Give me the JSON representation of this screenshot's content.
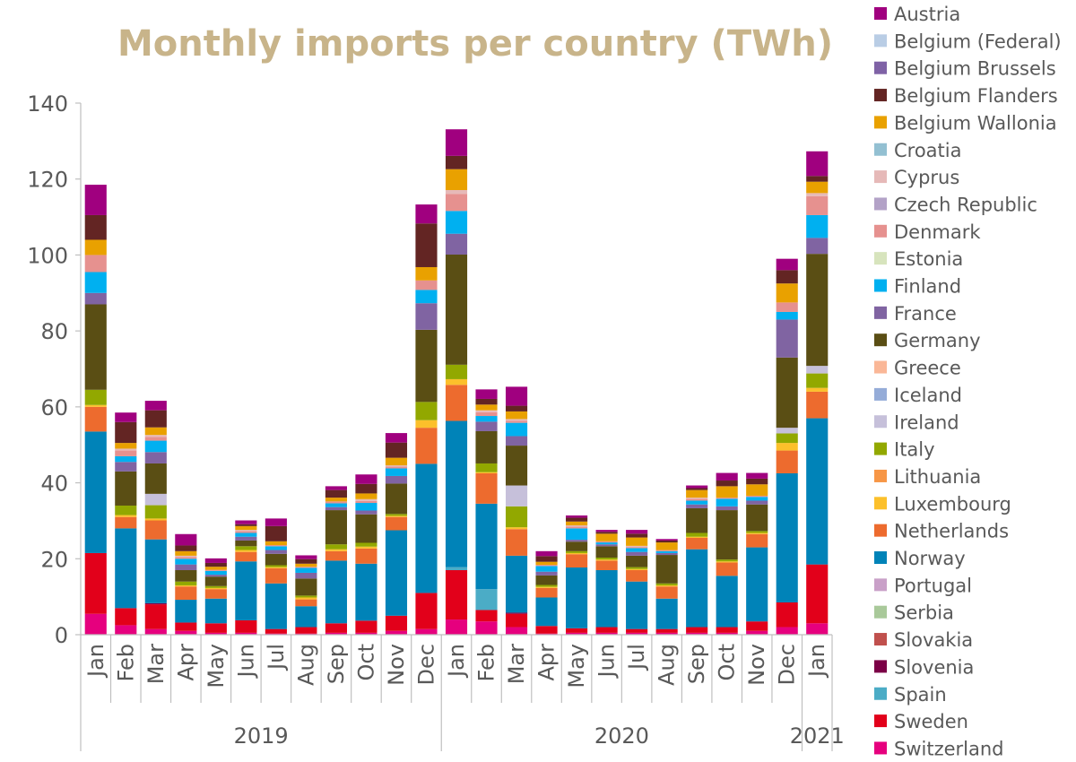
{
  "chart_data": {
    "type": "bar",
    "stacked": true,
    "title": "Monthly imports per country (TWh)",
    "xlabel": "",
    "ylabel": "",
    "ylim": [
      0,
      140
    ],
    "yticks": [
      0,
      20,
      40,
      60,
      80,
      100,
      120,
      140
    ],
    "grid": false,
    "legend_position": "right",
    "categories": [
      "Jan",
      "Feb",
      "Mar",
      "Apr",
      "May",
      "Jun",
      "Jul",
      "Aug",
      "Sep",
      "Oct",
      "Nov",
      "Dec",
      "Jan",
      "Feb",
      "Mar",
      "Apr",
      "May",
      "Jun",
      "Jul",
      "Aug",
      "Sep",
      "Oct",
      "Nov",
      "Dec",
      "Jan"
    ],
    "groups": [
      {
        "label": "2019",
        "start": 0,
        "end": 11
      },
      {
        "label": "2020",
        "start": 12,
        "end": 23
      },
      {
        "label": "2021",
        "start": 24,
        "end": 24
      }
    ],
    "series": [
      {
        "name": "Switzerland",
        "color": "#e6007e",
        "values": [
          5.5,
          2.5,
          1.5,
          1,
          0.5,
          0.5,
          0.3,
          0.3,
          0.5,
          0.5,
          1,
          1.5,
          4,
          3.5,
          2,
          0.3,
          0.5,
          0.5,
          0.5,
          0.5,
          0.5,
          0.5,
          1,
          2,
          3
        ]
      },
      {
        "name": "Sweden",
        "color": "#e2001a",
        "values": [
          16,
          4.5,
          6.5,
          2.2,
          2.5,
          3.3,
          1.2,
          1.7,
          2.5,
          3.2,
          4,
          9.5,
          13,
          3,
          3.5,
          2,
          1.2,
          1.5,
          1,
          1,
          1.5,
          1.5,
          2.5,
          6.5,
          15.5
        ]
      },
      {
        "name": "Spain",
        "color": "#4bacc6",
        "values": [
          0,
          0,
          0,
          0,
          0,
          0,
          0,
          0,
          0,
          0,
          0,
          0,
          0.8,
          5.5,
          0,
          0,
          0,
          0,
          0,
          0,
          0,
          0,
          0,
          0,
          0
        ]
      },
      {
        "name": "Slovenia",
        "color": "#7b0046",
        "values": [
          0,
          0,
          0.3,
          0,
          0,
          0,
          0,
          0,
          0,
          0,
          0,
          0,
          0,
          0,
          0.3,
          0,
          0,
          0,
          0,
          0,
          0,
          0,
          0,
          0,
          0
        ]
      },
      {
        "name": "Slovakia",
        "color": "#c0504d",
        "values": [
          0,
          0,
          0,
          0,
          0,
          0,
          0,
          0,
          0,
          0,
          0,
          0,
          0,
          0,
          0,
          0,
          0,
          0,
          0,
          0,
          0,
          0,
          0,
          0,
          0
        ]
      },
      {
        "name": "Serbia",
        "color": "#a9c99a",
        "values": [
          0,
          0,
          0,
          0,
          0,
          0,
          0,
          0,
          0,
          0,
          0,
          0,
          0,
          0,
          0,
          0,
          0,
          0,
          0,
          0,
          0,
          0,
          0,
          0,
          0
        ]
      },
      {
        "name": "Portugal",
        "color": "#c9a0c8",
        "values": [
          0,
          0,
          0,
          0,
          0,
          0,
          0,
          0,
          0,
          0,
          0,
          0,
          0,
          0,
          0,
          0,
          0,
          0,
          0,
          0,
          0,
          0,
          0,
          0,
          0
        ]
      },
      {
        "name": "Norway",
        "color": "#0083b8",
        "values": [
          32,
          21,
          16.8,
          6,
          6.5,
          15.5,
          12,
          5.5,
          16.5,
          15,
          22.5,
          34,
          38.5,
          22.5,
          15,
          7.5,
          16,
          15,
          12.5,
          8,
          20.5,
          13.5,
          19.5,
          34,
          38.5
        ]
      },
      {
        "name": "Netherlands",
        "color": "#ed6b2e",
        "values": [
          6.5,
          3,
          5,
          3.5,
          2.5,
          2.5,
          4,
          1.8,
          2.5,
          4,
          3.5,
          9.5,
          9.5,
          8,
          7,
          2.5,
          3.5,
          2.5,
          3,
          3.2,
          3,
          3.5,
          3.5,
          6,
          7
        ]
      },
      {
        "name": "Luxembourg",
        "color": "#fcc02b",
        "values": [
          0.5,
          0.5,
          0.5,
          0.3,
          0.3,
          0.5,
          0.3,
          0.5,
          0.5,
          0.5,
          0.3,
          2,
          1.5,
          0.3,
          0.5,
          0.3,
          0.3,
          0.3,
          0.3,
          0.3,
          0.3,
          0.3,
          0.3,
          2,
          1
        ]
      },
      {
        "name": "Lithuania",
        "color": "#f79646",
        "values": [
          0,
          0,
          0,
          0,
          0,
          0,
          0,
          0,
          0,
          0,
          0,
          0,
          0,
          0,
          0,
          0,
          0,
          0,
          0,
          0,
          0,
          0,
          0,
          0,
          0
        ]
      },
      {
        "name": "Italy",
        "color": "#92a800",
        "values": [
          4,
          2.5,
          3.5,
          1,
          0.5,
          1,
          0.5,
          0.5,
          1.3,
          1,
          0.5,
          4.8,
          3.8,
          2.3,
          5.5,
          0.5,
          0.5,
          0.5,
          0.5,
          0.5,
          1,
          0.5,
          0.5,
          2.5,
          3.8
        ]
      },
      {
        "name": "Ireland",
        "color": "#c6c0da",
        "values": [
          0,
          0,
          3,
          0,
          0,
          0,
          0,
          0,
          0,
          0,
          0,
          0,
          0,
          0,
          5.5,
          0,
          0,
          0,
          0,
          0,
          0,
          0,
          0,
          1.5,
          2
        ]
      },
      {
        "name": "Iceland",
        "color": "#95acd8",
        "values": [
          0,
          0,
          0,
          0,
          0,
          0,
          0,
          0,
          0,
          0,
          0,
          0,
          0,
          0,
          0,
          0,
          0,
          0,
          0,
          0,
          0,
          0,
          0,
          0,
          0
        ]
      },
      {
        "name": "Greece",
        "color": "#fab797",
        "values": [
          0,
          0,
          0,
          0,
          0,
          0,
          0,
          0,
          0,
          0,
          0,
          0,
          0,
          0,
          0,
          0,
          0,
          0,
          0,
          0,
          0,
          0,
          0,
          0,
          0
        ]
      },
      {
        "name": "Germany",
        "color": "#5a4e14",
        "values": [
          22.5,
          9,
          8,
          3,
          2.5,
          1.5,
          3,
          4.5,
          9,
          7.5,
          8,
          19,
          29,
          8.5,
          10.5,
          2.5,
          2.5,
          3,
          3,
          7.5,
          6.5,
          13,
          7,
          18.5,
          29.5
        ]
      },
      {
        "name": "France",
        "color": "#8064a2",
        "values": [
          3,
          2.5,
          3,
          1.5,
          0.5,
          1,
          1,
          1.5,
          0.8,
          1,
          2,
          7,
          5.5,
          2.5,
          2.5,
          1,
          0.5,
          0.5,
          1,
          0.5,
          1,
          1,
          1,
          10,
          4.2
        ]
      },
      {
        "name": "Finland",
        "color": "#00b0f0",
        "values": [
          5.5,
          1.5,
          3,
          1.5,
          1,
          1,
          1,
          1.3,
          1,
          2,
          2,
          3.5,
          6,
          1.5,
          3.5,
          1.5,
          3,
          0.5,
          1,
          0.5,
          1,
          2,
          1,
          2,
          6
        ]
      },
      {
        "name": "Estonia",
        "color": "#d7e4bd",
        "values": [
          0,
          0,
          0,
          0,
          0,
          0,
          0,
          0,
          0,
          0,
          0,
          0,
          0,
          0,
          0,
          0,
          0,
          0,
          0,
          0,
          0,
          0,
          0,
          0,
          0
        ]
      },
      {
        "name": "Denmark",
        "color": "#e6918f",
        "values": [
          4.5,
          1.5,
          1,
          0.5,
          0.3,
          0.5,
          0.3,
          0.3,
          0.5,
          0.5,
          0.5,
          2.5,
          4.5,
          1,
          0.5,
          0.3,
          0.5,
          0.3,
          0.3,
          0.3,
          0.5,
          0.3,
          0.3,
          2.5,
          5
        ]
      },
      {
        "name": "Czech Republic",
        "color": "#b3a2c7",
        "values": [
          0,
          0,
          0,
          0,
          0,
          0,
          0,
          0,
          0,
          0,
          0,
          0,
          0,
          0,
          0,
          0,
          0,
          0,
          0,
          0,
          0,
          0,
          0,
          0,
          0
        ]
      },
      {
        "name": "Cyprus",
        "color": "#e6b9b8",
        "values": [
          0,
          0.5,
          0.5,
          0.3,
          0,
          0.3,
          0,
          0,
          0,
          0.5,
          0.3,
          0,
          1,
          0.5,
          0.5,
          0,
          0.3,
          0,
          0.3,
          0,
          0.3,
          0,
          0,
          0,
          0.8
        ]
      },
      {
        "name": "Croatia",
        "color": "#93c0d2",
        "values": [
          0,
          0,
          0,
          0,
          0,
          0,
          0,
          0,
          0,
          0,
          0,
          0,
          0,
          0,
          0,
          0,
          0,
          0,
          0,
          0,
          0,
          0,
          0,
          0,
          0
        ]
      },
      {
        "name": "Belgium Wallonia",
        "color": "#e9a100",
        "values": [
          4,
          1.5,
          2,
          1.2,
          0.8,
          1,
          1,
          0.8,
          1,
          1.5,
          2,
          3.5,
          5.5,
          1.5,
          2,
          0.8,
          1,
          2,
          2.2,
          2,
          2,
          3,
          3,
          5,
          3
        ]
      },
      {
        "name": "Belgium Flanders",
        "color": "#632523",
        "values": [
          6.5,
          5.5,
          4.5,
          1.5,
          1,
          0.5,
          4,
          1.2,
          2,
          2.5,
          4,
          11.5,
          3.5,
          1.5,
          1.5,
          1.5,
          1,
          0.5,
          1,
          0.5,
          0.5,
          1.5,
          1.5,
          3.5,
          1.5
        ]
      },
      {
        "name": "Belgium Brussels",
        "color": "#7f62a6",
        "values": [
          0,
          0,
          0,
          0,
          0,
          0,
          0,
          0,
          0,
          0,
          0,
          0,
          0,
          0,
          0,
          0,
          0,
          0,
          0,
          0,
          0,
          0,
          0,
          0,
          0
        ]
      },
      {
        "name": "Belgium (Federal)",
        "color": "#b9cde5",
        "values": [
          0,
          0,
          0,
          0,
          0,
          0,
          0,
          0,
          0,
          0,
          0,
          0,
          0,
          0,
          0,
          0,
          0,
          0,
          0,
          0,
          0,
          0,
          0,
          0,
          0
        ]
      },
      {
        "name": "Austria",
        "color": "#a0007f",
        "values": [
          8,
          2.5,
          2.5,
          3,
          1.2,
          1,
          2,
          1,
          1,
          2.5,
          2.5,
          5,
          7,
          2.5,
          5,
          1.3,
          0.6,
          0.5,
          1,
          0.4,
          0.7,
          2,
          1.5,
          3,
          6.5
        ]
      }
    ],
    "legend_order": [
      "Austria",
      "Belgium (Federal)",
      "Belgium Brussels",
      "Belgium Flanders",
      "Belgium Wallonia",
      "Croatia",
      "Cyprus",
      "Czech Republic",
      "Denmark",
      "Estonia",
      "Finland",
      "France",
      "Germany",
      "Greece",
      "Iceland",
      "Ireland",
      "Italy",
      "Lithuania",
      "Luxembourg",
      "Netherlands",
      "Norway",
      "Portugal",
      "Serbia",
      "Slovakia",
      "Slovenia",
      "Spain",
      "Sweden",
      "Switzerland"
    ]
  },
  "colors": {
    "title": "#c8b48a",
    "axis": "#bfbfbf",
    "tick_text": "#595959"
  }
}
